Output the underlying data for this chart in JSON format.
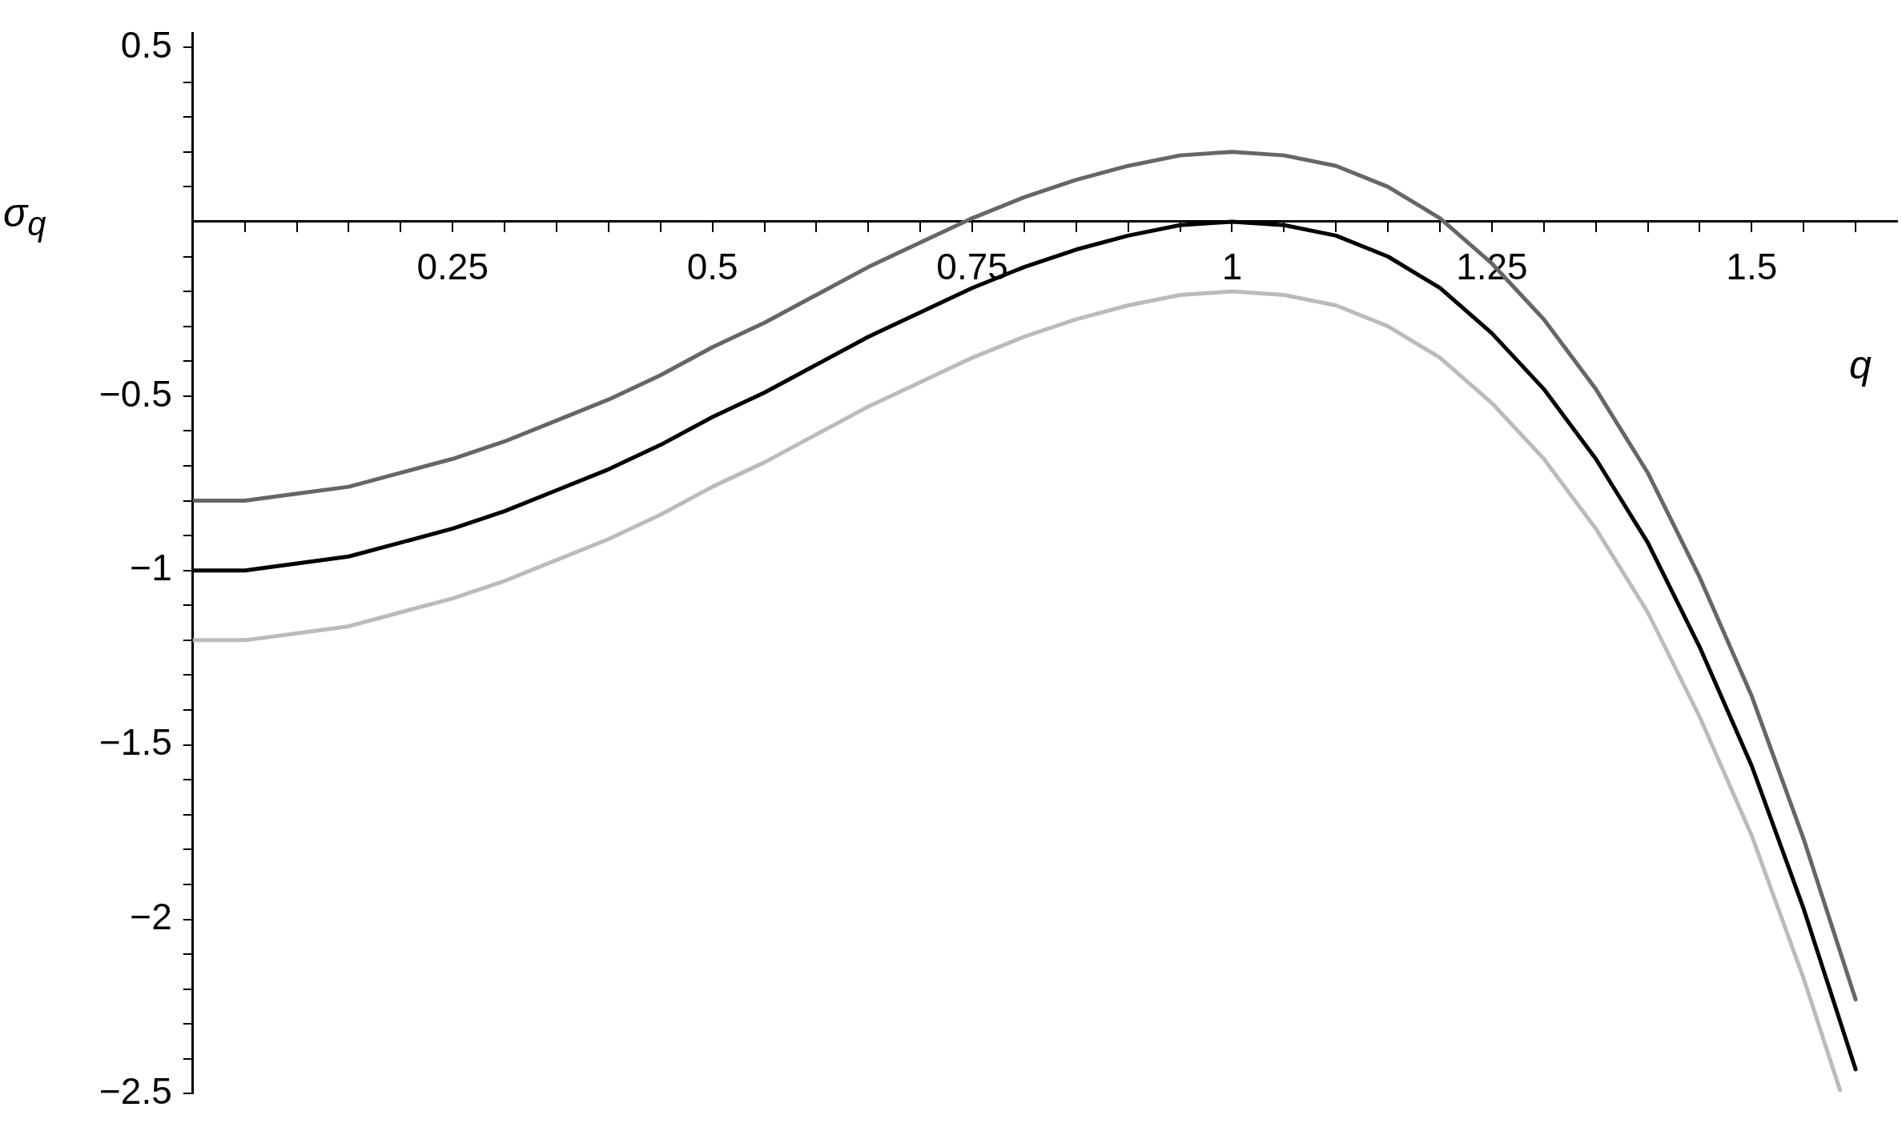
{
  "chart_data": {
    "type": "line",
    "xlabel": "q",
    "ylabel": "σ$_{q}$",
    "x": [
      0,
      0.05,
      0.1,
      0.15,
      0.2,
      0.25,
      0.3,
      0.35,
      0.4,
      0.45,
      0.5,
      0.55,
      0.6,
      0.65,
      0.7,
      0.75,
      0.8,
      0.85,
      0.9,
      0.95,
      1,
      1.05,
      1.1,
      1.15,
      1.2,
      1.25,
      1.3,
      1.35,
      1.4,
      1.45,
      1.5,
      1.55,
      1.6
    ],
    "series": [
      {
        "color": "#666666",
        "values": [
          -0.8,
          -0.8,
          -0.78,
          -0.76,
          -0.72,
          -0.68,
          -0.63,
          -0.57,
          -0.51,
          -0.44,
          -0.36,
          -0.29,
          -0.21,
          -0.13,
          -0.06,
          0.01,
          0.07,
          0.12,
          0.16,
          0.19,
          0.2,
          0.19,
          0.16,
          0.1,
          0.01,
          -0.12,
          -0.28,
          -0.48,
          -0.72,
          -1.02,
          -1.36,
          -1.77,
          -2.23
        ]
      },
      {
        "color": "#000000",
        "values": [
          -1,
          -1,
          -0.98,
          -0.96,
          -0.92,
          -0.88,
          -0.83,
          -0.77,
          -0.71,
          -0.64,
          -0.56,
          -0.49,
          -0.41,
          -0.33,
          -0.26,
          -0.19,
          -0.13,
          -0.08,
          -0.04,
          -0.01,
          0,
          -0.01,
          -0.04,
          -0.1,
          -0.19,
          -0.32,
          -0.48,
          -0.68,
          -0.92,
          -1.22,
          -1.56,
          -1.97,
          -2.43
        ]
      },
      {
        "color": "#bbbbbb",
        "x": [
          0,
          0.05,
          0.1,
          0.15,
          0.2,
          0.25,
          0.3,
          0.35,
          0.4,
          0.45,
          0.5,
          0.55,
          0.6,
          0.65,
          0.7,
          0.75,
          0.8,
          0.85,
          0.9,
          0.95,
          1,
          1.05,
          1.1,
          1.15,
          1.2,
          1.25,
          1.3,
          1.35,
          1.4,
          1.45,
          1.5,
          1.55,
          1.585
        ],
        "values": [
          -1.2,
          -1.2,
          -1.18,
          -1.16,
          -1.12,
          -1.08,
          -1.03,
          -0.97,
          -0.91,
          -0.84,
          -0.76,
          -0.69,
          -0.61,
          -0.53,
          -0.46,
          -0.39,
          -0.33,
          -0.28,
          -0.24,
          -0.21,
          -0.2,
          -0.21,
          -0.24,
          -0.3,
          -0.39,
          -0.52,
          -0.68,
          -0.88,
          -1.12,
          -1.42,
          -1.76,
          -2.17,
          -2.49
        ]
      }
    ],
    "xlim": [
      0,
      1.64
    ],
    "ylim": [
      -2.5,
      0.54
    ],
    "xticks": [
      {
        "value": 0.05,
        "label": null
      },
      {
        "value": 0.1,
        "label": null
      },
      {
        "value": 0.15,
        "label": null
      },
      {
        "value": 0.2,
        "label": null
      },
      {
        "value": 0.25,
        "label": "0.25"
      },
      {
        "value": 0.3,
        "label": null
      },
      {
        "value": 0.35,
        "label": null
      },
      {
        "value": 0.4,
        "label": null
      },
      {
        "value": 0.45,
        "label": null
      },
      {
        "value": 0.5,
        "label": "0.5"
      },
      {
        "value": 0.55,
        "label": null
      },
      {
        "value": 0.6,
        "label": null
      },
      {
        "value": 0.65,
        "label": null
      },
      {
        "value": 0.7,
        "label": null
      },
      {
        "value": 0.75,
        "label": "0.75"
      },
      {
        "value": 0.8,
        "label": null
      },
      {
        "value": 0.85,
        "label": null
      },
      {
        "value": 0.9,
        "label": null
      },
      {
        "value": 0.95,
        "label": null
      },
      1,
      {
        "value": 1.05,
        "label": null
      },
      {
        "value": 1.1,
        "label": null
      },
      {
        "value": 1.15,
        "label": null
      },
      {
        "value": 1.2,
        "label": null
      },
      {
        "value": 1.25,
        "label": "1.25"
      },
      {
        "value": 1.3,
        "label": null
      },
      {
        "value": 1.35,
        "label": null
      },
      {
        "value": 1.4,
        "label": null
      },
      {
        "value": 1.45,
        "label": null
      },
      {
        "value": 1.5,
        "label": "1.5"
      },
      {
        "value": 1.55,
        "label": null
      },
      {
        "value": 1.6,
        "label": null
      }
    ],
    "yticks": [
      {
        "value": -2.5,
        "label": "−2.5"
      },
      {
        "value": -2.4,
        "label": null
      },
      {
        "value": -2.3,
        "label": null
      },
      {
        "value": -2.2,
        "label": null
      },
      {
        "value": -2.1,
        "label": null
      },
      {
        "value": -2,
        "label": "−2"
      },
      {
        "value": -1.9,
        "label": null
      },
      {
        "value": -1.8,
        "label": null
      },
      {
        "value": -1.7,
        "label": null
      },
      {
        "value": -1.6,
        "label": null
      },
      {
        "value": -1.5,
        "label": "−1.5"
      },
      {
        "value": -1.4,
        "label": null
      },
      {
        "value": -1.3,
        "label": null
      },
      {
        "value": -1.2,
        "label": null
      },
      {
        "value": -1.1,
        "label": null
      },
      {
        "value": -1,
        "label": "−1"
      },
      {
        "value": -0.9,
        "label": null
      },
      {
        "value": -0.8,
        "label": null
      },
      {
        "value": -0.7,
        "label": null
      },
      {
        "value": -0.6,
        "label": null
      },
      {
        "value": -0.5,
        "label": "−0.5"
      },
      {
        "value": -0.4,
        "label": null
      },
      {
        "value": -0.3,
        "label": null
      },
      {
        "value": -0.2,
        "label": null
      },
      {
        "value": -0.1,
        "label": null
      },
      {
        "value": 0.1,
        "label": null
      },
      {
        "value": 0.2,
        "label": null
      },
      {
        "value": 0.3,
        "label": null
      },
      {
        "value": 0.4,
        "label": null
      },
      0.5
    ],
    "grid": false,
    "legend": false,
    "marker": "none",
    "line_style": "solid"
  }
}
